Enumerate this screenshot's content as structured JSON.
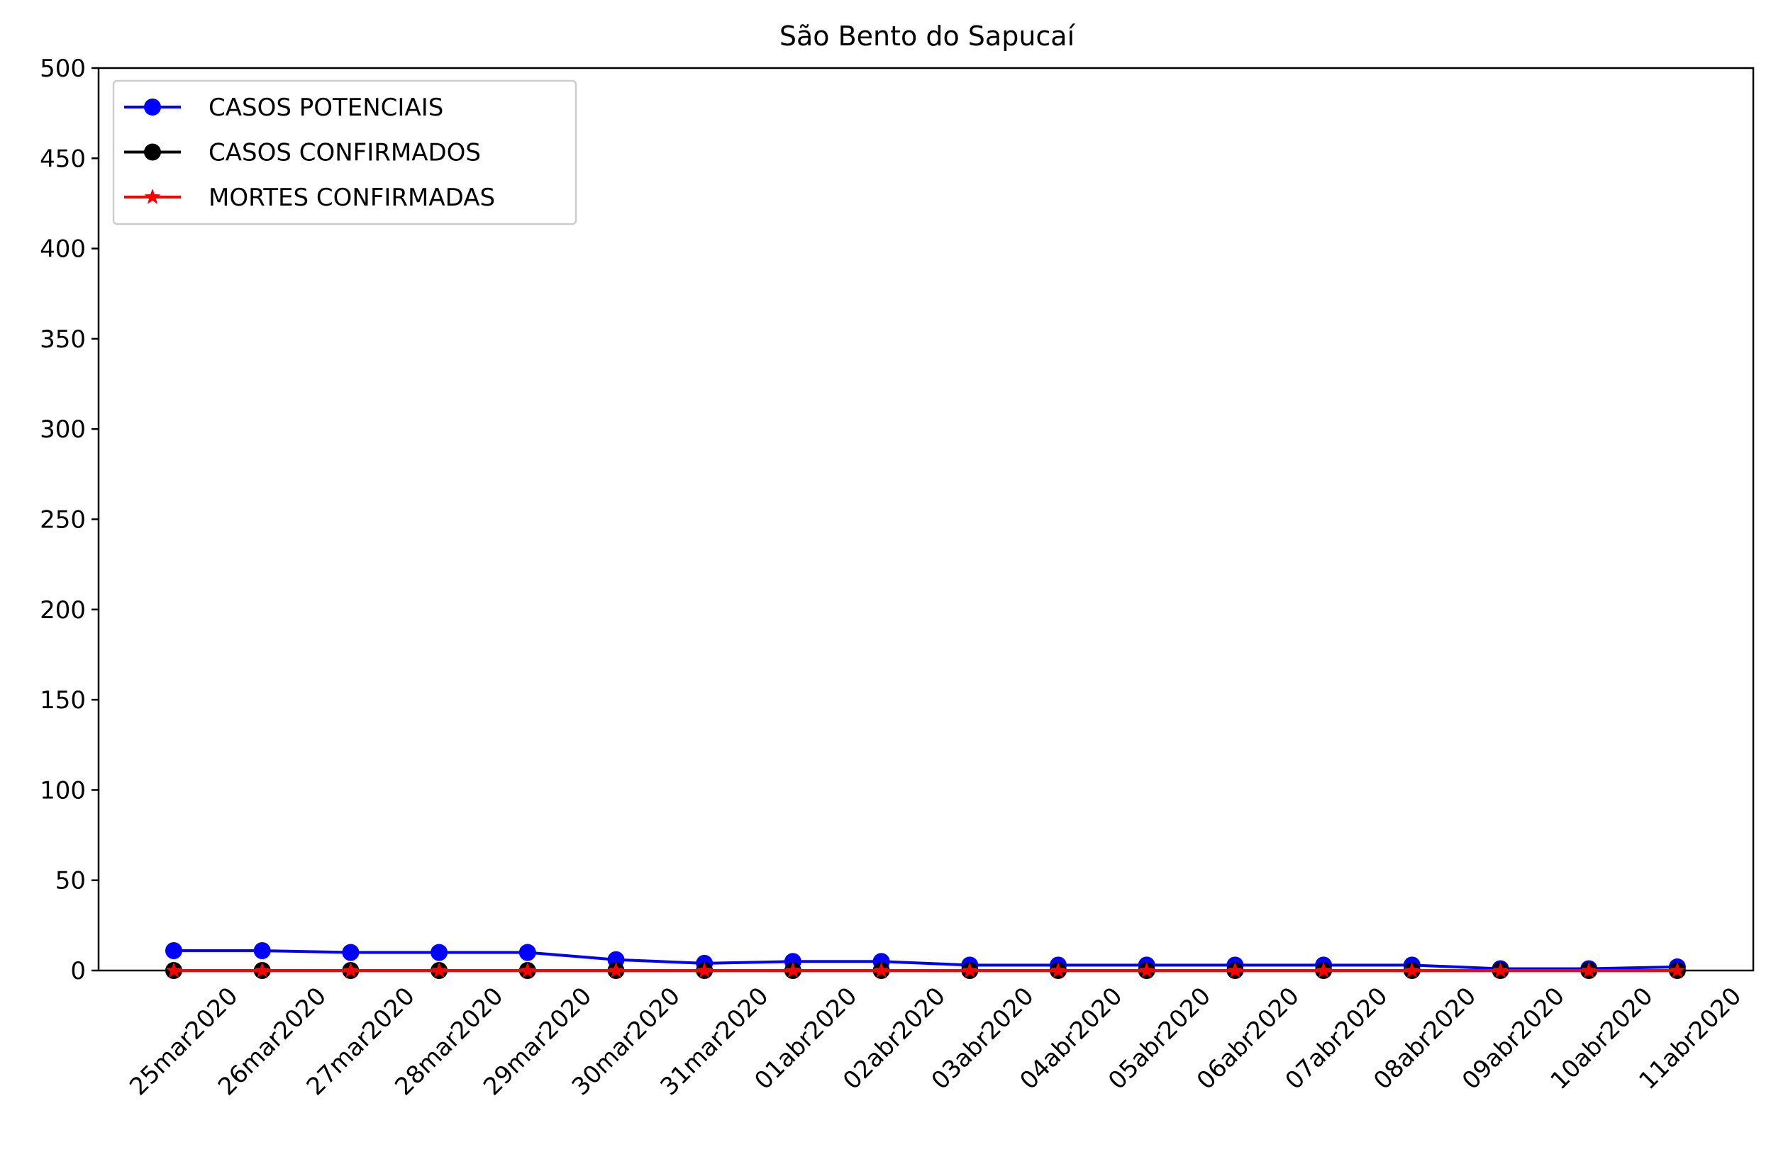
{
  "chart_data": {
    "type": "line",
    "title": "São Bento do Sapucaí",
    "xlabel": "",
    "ylabel": "",
    "categories": [
      "25mar2020",
      "26mar2020",
      "27mar2020",
      "28mar2020",
      "29mar2020",
      "30mar2020",
      "31mar2020",
      "01abr2020",
      "02abr2020",
      "03abr2020",
      "04abr2020",
      "05abr2020",
      "06abr2020",
      "07abr2020",
      "08abr2020",
      "09abr2020",
      "10abr2020",
      "11abr2020"
    ],
    "ylim": [
      0,
      500
    ],
    "yticks": [
      0,
      50,
      100,
      150,
      200,
      250,
      300,
      350,
      400,
      450,
      500
    ],
    "grid": false,
    "legend_position": "top-left",
    "series": [
      {
        "name": "CASOS POTENCIAIS",
        "color": "#0000ff",
        "marker": "circle",
        "values": [
          11,
          11,
          10,
          10,
          10,
          6,
          4,
          5,
          5,
          3,
          3,
          3,
          3,
          3,
          3,
          1,
          1,
          2
        ]
      },
      {
        "name": "CASOS CONFIRMADOS",
        "color": "#000000",
        "marker": "circle",
        "values": [
          0,
          0,
          0,
          0,
          0,
          0,
          0,
          0,
          0,
          0,
          0,
          0,
          0,
          0,
          0,
          0,
          0,
          0
        ]
      },
      {
        "name": "MORTES CONFIRMADAS",
        "color": "#ff0000",
        "marker": "star",
        "values": [
          0,
          0,
          0,
          0,
          0,
          0,
          0,
          0,
          0,
          0,
          0,
          0,
          0,
          0,
          0,
          0,
          0,
          0
        ]
      }
    ]
  }
}
